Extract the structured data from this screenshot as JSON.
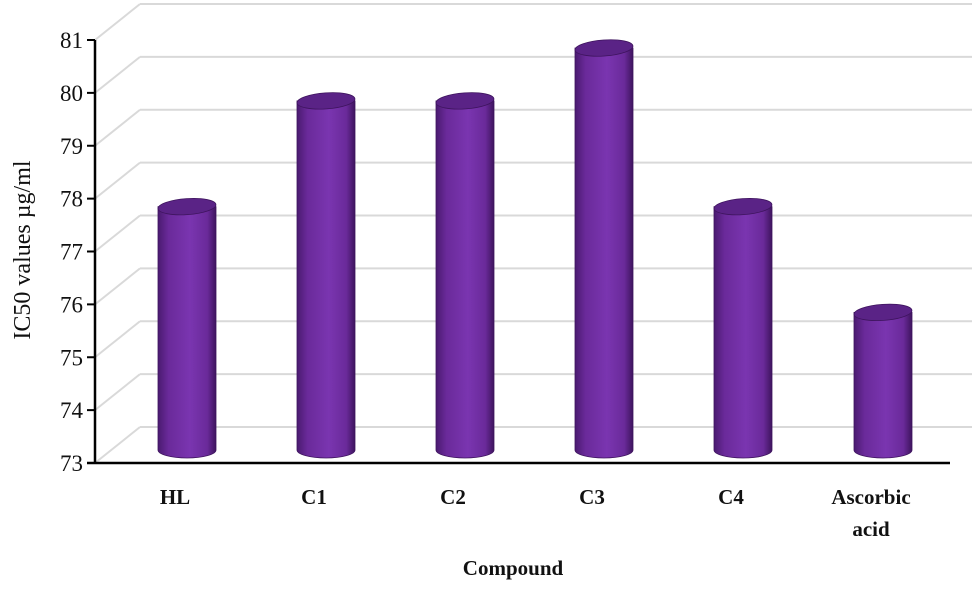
{
  "chart_data": {
    "type": "bar",
    "style": "3d-cylinder",
    "title": "",
    "xlabel": "Compound",
    "ylabel": "IC50 values µg/ml",
    "categories": [
      "HL",
      "C1",
      "C2",
      "C3",
      "C4",
      "Ascorbic acid"
    ],
    "category_lines": [
      [
        "HL"
      ],
      [
        "C1"
      ],
      [
        "C2"
      ],
      [
        "C3"
      ],
      [
        "C4"
      ],
      [
        "Ascorbic",
        "acid"
      ]
    ],
    "values": [
      78,
      80,
      80,
      81,
      78,
      76
    ],
    "ylim": [
      73,
      81
    ],
    "yticks": [
      73,
      74,
      75,
      76,
      77,
      78,
      79,
      80,
      81
    ],
    "grid": true,
    "legend": null,
    "colors": {
      "bar": "#7030a0",
      "bar_dark": "#4a1a70",
      "bar_light": "#8a45bd",
      "grid": "#d9d9d9",
      "axis": "#000000"
    }
  }
}
